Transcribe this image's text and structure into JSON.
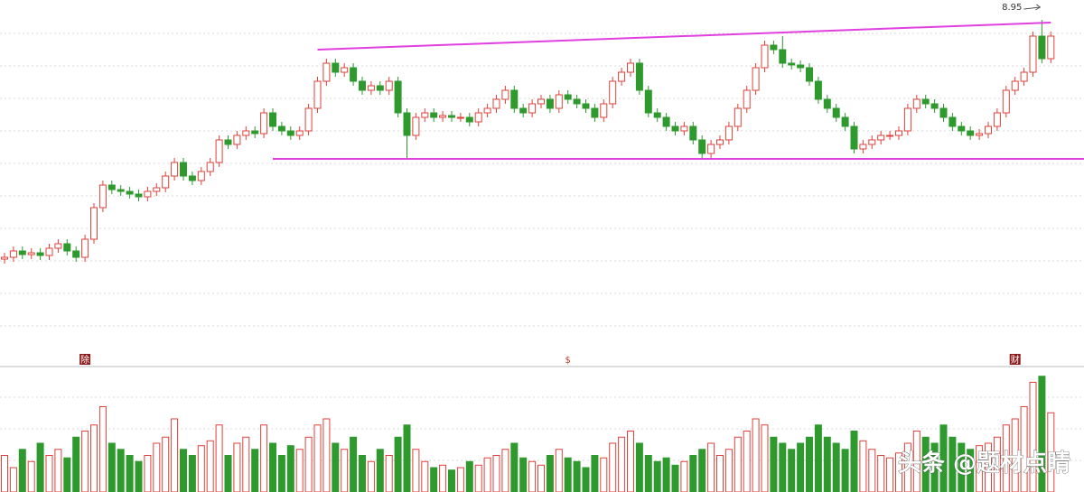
{
  "chart_data": {
    "type": "candlestick",
    "ylim": [
      5.12,
      9.17
    ],
    "vlim": [
      0,
      100
    ],
    "up_color": "#e0413a",
    "down_color": "#2e9a2e",
    "open": [
      6.3,
      6.32,
      6.39,
      6.35,
      6.37,
      6.34,
      6.42,
      6.47,
      6.39,
      6.32,
      6.52,
      6.87,
      7.12,
      7.07,
      7.05,
      7.02,
      6.99,
      7.05,
      7.09,
      7.22,
      7.37,
      7.22,
      7.17,
      7.27,
      7.37,
      7.62,
      7.57,
      7.67,
      7.72,
      7.69,
      7.92,
      7.77,
      7.72,
      7.67,
      7.72,
      7.97,
      8.27,
      8.47,
      8.37,
      8.42,
      8.27,
      8.17,
      8.22,
      8.17,
      8.27,
      7.92,
      7.67,
      7.87,
      7.92,
      7.87,
      7.89,
      7.87,
      7.87,
      7.82,
      7.92,
      7.97,
      8.07,
      8.17,
      7.97,
      7.92,
      8.02,
      8.07,
      7.97,
      8.12,
      8.07,
      8.02,
      7.97,
      7.87,
      8.02,
      8.27,
      8.37,
      8.47,
      8.17,
      7.92,
      7.87,
      7.77,
      7.72,
      7.77,
      7.62,
      7.47,
      7.57,
      7.62,
      7.77,
      7.97,
      8.17,
      8.42,
      8.67,
      8.62,
      8.47,
      8.45,
      8.42,
      8.27,
      8.07,
      7.97,
      7.87,
      7.77,
      7.52,
      7.57,
      7.62,
      7.67,
      7.67,
      7.72,
      7.97,
      8.07,
      8.02,
      7.97,
      7.87,
      7.77,
      7.72,
      7.67,
      7.69,
      7.77,
      7.92,
      8.17,
      8.27,
      8.37,
      8.77,
      8.52
    ],
    "high": [
      6.37,
      6.44,
      6.44,
      6.42,
      6.42,
      6.47,
      6.52,
      6.52,
      6.44,
      6.57,
      6.92,
      7.17,
      7.17,
      7.12,
      7.1,
      7.07,
      7.1,
      7.14,
      7.27,
      7.42,
      7.42,
      7.27,
      7.32,
      7.42,
      7.67,
      7.67,
      7.72,
      7.77,
      7.77,
      7.97,
      7.97,
      7.82,
      7.77,
      7.77,
      8.02,
      8.32,
      8.52,
      8.52,
      8.47,
      8.47,
      8.32,
      8.27,
      8.27,
      8.32,
      8.32,
      7.97,
      7.92,
      7.97,
      7.97,
      7.94,
      7.94,
      7.92,
      7.92,
      7.97,
      8.02,
      8.12,
      8.22,
      8.22,
      8.02,
      8.07,
      8.12,
      8.12,
      8.17,
      8.17,
      8.12,
      8.07,
      8.02,
      8.07,
      8.32,
      8.42,
      8.52,
      8.52,
      8.22,
      7.97,
      7.92,
      7.82,
      7.82,
      7.82,
      7.67,
      7.62,
      7.67,
      7.82,
      8.02,
      8.22,
      8.47,
      8.72,
      8.72,
      8.77,
      8.52,
      8.5,
      8.47,
      8.32,
      8.12,
      8.02,
      7.92,
      7.82,
      7.62,
      7.67,
      7.72,
      7.72,
      7.77,
      8.02,
      8.12,
      8.12,
      8.07,
      8.02,
      7.92,
      7.82,
      7.77,
      7.74,
      7.82,
      7.97,
      8.22,
      8.32,
      8.42,
      8.82,
      8.95,
      8.82
    ],
    "low": [
      6.25,
      6.27,
      6.3,
      6.3,
      6.29,
      6.29,
      6.37,
      6.34,
      6.27,
      6.27,
      6.47,
      6.82,
      7.02,
      7.0,
      6.97,
      6.94,
      6.94,
      7.0,
      7.04,
      7.17,
      7.17,
      7.12,
      7.12,
      7.22,
      7.32,
      7.52,
      7.52,
      7.62,
      7.64,
      7.64,
      7.72,
      7.67,
      7.62,
      7.62,
      7.67,
      7.92,
      8.22,
      8.32,
      8.32,
      8.22,
      8.12,
      8.12,
      8.12,
      8.12,
      7.87,
      7.42,
      7.62,
      7.82,
      7.82,
      7.82,
      7.82,
      7.82,
      7.77,
      7.77,
      7.87,
      7.92,
      8.02,
      7.92,
      7.87,
      7.87,
      7.97,
      7.92,
      7.92,
      8.02,
      7.97,
      7.92,
      7.82,
      7.82,
      7.97,
      8.22,
      8.32,
      8.12,
      7.87,
      7.82,
      7.72,
      7.67,
      7.67,
      7.57,
      7.42,
      7.42,
      7.52,
      7.57,
      7.72,
      7.92,
      8.12,
      8.37,
      8.57,
      8.42,
      8.4,
      8.37,
      8.22,
      8.02,
      7.92,
      7.82,
      7.72,
      7.47,
      7.47,
      7.52,
      7.57,
      7.62,
      7.62,
      7.67,
      7.92,
      7.97,
      7.92,
      7.82,
      7.72,
      7.67,
      7.62,
      7.62,
      7.64,
      7.72,
      7.87,
      8.12,
      8.22,
      8.32,
      8.47,
      8.47
    ],
    "close": [
      6.32,
      6.39,
      6.35,
      6.37,
      6.34,
      6.42,
      6.47,
      6.39,
      6.32,
      6.52,
      6.87,
      7.12,
      7.07,
      7.05,
      7.02,
      6.99,
      7.05,
      7.09,
      7.22,
      7.37,
      7.22,
      7.17,
      7.27,
      7.37,
      7.62,
      7.57,
      7.67,
      7.72,
      7.69,
      7.92,
      7.77,
      7.72,
      7.67,
      7.72,
      7.97,
      8.27,
      8.47,
      8.37,
      8.42,
      8.27,
      8.17,
      8.22,
      8.17,
      8.27,
      7.92,
      7.67,
      7.87,
      7.92,
      7.87,
      7.89,
      7.87,
      7.87,
      7.82,
      7.92,
      7.97,
      8.07,
      8.17,
      7.97,
      7.92,
      8.02,
      8.07,
      7.97,
      8.12,
      8.07,
      8.02,
      7.97,
      7.87,
      8.02,
      8.27,
      8.37,
      8.47,
      8.17,
      7.92,
      7.87,
      7.77,
      7.72,
      7.77,
      7.62,
      7.47,
      7.57,
      7.62,
      7.77,
      7.97,
      8.17,
      8.42,
      8.67,
      8.62,
      8.47,
      8.45,
      8.42,
      8.27,
      8.07,
      7.97,
      7.87,
      7.77,
      7.52,
      7.57,
      7.62,
      7.67,
      7.67,
      7.72,
      7.97,
      8.07,
      8.02,
      7.97,
      7.87,
      7.77,
      7.72,
      7.67,
      7.69,
      7.77,
      7.92,
      8.17,
      8.27,
      8.37,
      8.77,
      8.52,
      8.77
    ],
    "volume": [
      30,
      20,
      35,
      25,
      40,
      30,
      35,
      28,
      45,
      50,
      55,
      70,
      40,
      35,
      30,
      25,
      30,
      40,
      45,
      60,
      35,
      30,
      38,
      42,
      55,
      30,
      40,
      45,
      35,
      55,
      40,
      30,
      38,
      35,
      45,
      55,
      60,
      40,
      35,
      45,
      30,
      25,
      35,
      30,
      45,
      55,
      35,
      25,
      20,
      22,
      18,
      20,
      25,
      22,
      28,
      30,
      35,
      40,
      28,
      25,
      22,
      30,
      35,
      28,
      25,
      20,
      30,
      28,
      40,
      45,
      50,
      40,
      30,
      25,
      28,
      22,
      25,
      30,
      35,
      40,
      30,
      35,
      45,
      50,
      60,
      55,
      45,
      40,
      35,
      40,
      45,
      55,
      45,
      40,
      35,
      50,
      42,
      35,
      30,
      28,
      32,
      40,
      50,
      45,
      40,
      55,
      45,
      40,
      35,
      38,
      40,
      45,
      55,
      60,
      70,
      90,
      95,
      65
    ],
    "trendlines": [
      {
        "x": [
          35,
          117
        ],
        "y": [
          8.62,
          8.92
        ],
        "color": "#e040e0"
      },
      {
        "x": [
          30,
          121
        ],
        "y": [
          7.41,
          7.41
        ],
        "color": "#e040e0"
      }
    ],
    "annotations": [
      {
        "text": "8.95",
        "index": 116
      }
    ],
    "event_markers": [
      {
        "text": "除",
        "index": 9
      },
      {
        "text": "$",
        "index": 63
      },
      {
        "text": "财",
        "index": 113
      }
    ],
    "watermark": "头条 @题材点睛"
  }
}
